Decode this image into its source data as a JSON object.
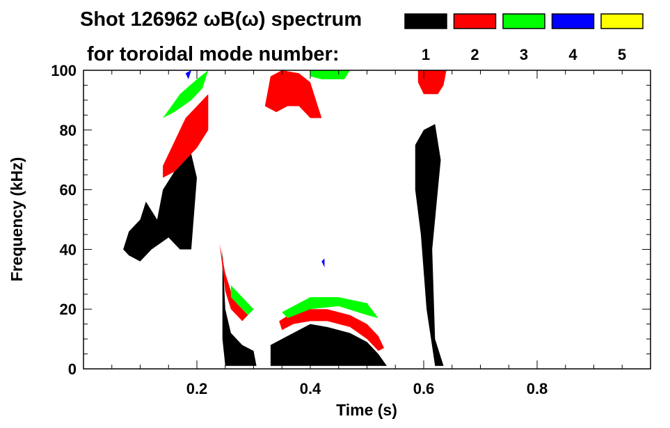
{
  "chart_data": {
    "type": "heatmap",
    "title_line1": "Shot 126962 ωB(ω) spectrum",
    "title_line2": "for toroidal mode number:",
    "xlabel": "Time (s)",
    "ylabel": "Frequency (kHz)",
    "xlim": [
      0.0,
      1.0
    ],
    "ylim": [
      0,
      100
    ],
    "xticks": [
      0.2,
      0.4,
      0.6,
      0.8
    ],
    "xtick_labels": [
      "0.2",
      "0.4",
      "0.6",
      "0.8"
    ],
    "yticks": [
      0,
      20,
      40,
      60,
      80,
      100
    ],
    "ytick_labels": [
      "0",
      "20",
      "40",
      "60",
      "80",
      "100"
    ],
    "legend": [
      {
        "label": "1",
        "color": "#000000"
      },
      {
        "label": "2",
        "color": "#ff0000"
      },
      {
        "label": "3",
        "color": "#00ff00"
      },
      {
        "label": "4",
        "color": "#0000ff"
      },
      {
        "label": "5",
        "color": "#ffff00"
      }
    ],
    "regions": [
      {
        "mode": 1,
        "points": [
          [
            0.07,
            40
          ],
          [
            0.08,
            46
          ],
          [
            0.1,
            50
          ],
          [
            0.11,
            56
          ],
          [
            0.13,
            50
          ],
          [
            0.14,
            60
          ],
          [
            0.16,
            66
          ],
          [
            0.19,
            72
          ],
          [
            0.2,
            64
          ],
          [
            0.19,
            40
          ],
          [
            0.17,
            40
          ],
          [
            0.15,
            44
          ],
          [
            0.12,
            40
          ],
          [
            0.1,
            36
          ],
          [
            0.08,
            38
          ]
        ]
      },
      {
        "mode": 1,
        "points": [
          [
            0.245,
            40
          ],
          [
            0.25,
            20
          ],
          [
            0.26,
            12
          ],
          [
            0.28,
            8
          ],
          [
            0.3,
            6
          ],
          [
            0.305,
            1
          ],
          [
            0.25,
            1
          ],
          [
            0.245,
            10
          ]
        ]
      },
      {
        "mode": 1,
        "points": [
          [
            0.33,
            8
          ],
          [
            0.36,
            11
          ],
          [
            0.4,
            15
          ],
          [
            0.43,
            14
          ],
          [
            0.47,
            12
          ],
          [
            0.5,
            9
          ],
          [
            0.52,
            5
          ],
          [
            0.535,
            1
          ],
          [
            0.33,
            1
          ]
        ]
      },
      {
        "mode": 1,
        "points": [
          [
            0.585,
            75
          ],
          [
            0.6,
            80
          ],
          [
            0.62,
            82
          ],
          [
            0.63,
            70
          ],
          [
            0.615,
            40
          ],
          [
            0.62,
            10
          ],
          [
            0.635,
            1
          ],
          [
            0.62,
            1
          ],
          [
            0.605,
            20
          ],
          [
            0.595,
            45
          ],
          [
            0.585,
            60
          ]
        ]
      },
      {
        "mode": 2,
        "points": [
          [
            0.14,
            68
          ],
          [
            0.16,
            76
          ],
          [
            0.18,
            84
          ],
          [
            0.2,
            88
          ],
          [
            0.22,
            92
          ],
          [
            0.22,
            80
          ],
          [
            0.2,
            74
          ],
          [
            0.18,
            70
          ],
          [
            0.16,
            66
          ],
          [
            0.14,
            64
          ]
        ]
      },
      {
        "mode": 2,
        "points": [
          [
            0.24,
            42
          ],
          [
            0.25,
            32
          ],
          [
            0.26,
            26
          ],
          [
            0.27,
            22
          ],
          [
            0.29,
            18
          ],
          [
            0.28,
            16
          ],
          [
            0.26,
            20
          ],
          [
            0.25,
            26
          ]
        ]
      },
      {
        "mode": 2,
        "points": [
          [
            0.345,
            16
          ],
          [
            0.37,
            19
          ],
          [
            0.4,
            20
          ],
          [
            0.43,
            20
          ],
          [
            0.47,
            18
          ],
          [
            0.5,
            15
          ],
          [
            0.52,
            11
          ],
          [
            0.53,
            7
          ],
          [
            0.52,
            6
          ],
          [
            0.5,
            10
          ],
          [
            0.47,
            14
          ],
          [
            0.43,
            16
          ],
          [
            0.4,
            16
          ],
          [
            0.37,
            15
          ],
          [
            0.35,
            13
          ]
        ]
      },
      {
        "mode": 2,
        "points": [
          [
            0.32,
            88
          ],
          [
            0.33,
            98
          ],
          [
            0.35,
            100
          ],
          [
            0.38,
            99
          ],
          [
            0.4,
            96
          ],
          [
            0.41,
            90
          ],
          [
            0.42,
            84
          ],
          [
            0.4,
            84
          ],
          [
            0.38,
            88
          ],
          [
            0.36,
            88
          ],
          [
            0.34,
            86
          ]
        ]
      },
      {
        "mode": 2,
        "points": [
          [
            0.59,
            100
          ],
          [
            0.64,
            100
          ],
          [
            0.635,
            95
          ],
          [
            0.625,
            92
          ],
          [
            0.6,
            92
          ],
          [
            0.59,
            96
          ]
        ]
      },
      {
        "mode": 3,
        "points": [
          [
            0.14,
            84
          ],
          [
            0.17,
            92
          ],
          [
            0.2,
            97
          ],
          [
            0.22,
            100
          ],
          [
            0.21,
            94
          ],
          [
            0.19,
            90
          ],
          [
            0.16,
            86
          ]
        ]
      },
      {
        "mode": 3,
        "points": [
          [
            0.26,
            28
          ],
          [
            0.28,
            24
          ],
          [
            0.3,
            20
          ],
          [
            0.29,
            18
          ],
          [
            0.27,
            22
          ],
          [
            0.26,
            24
          ]
        ]
      },
      {
        "mode": 3,
        "points": [
          [
            0.35,
            19
          ],
          [
            0.4,
            24
          ],
          [
            0.45,
            24
          ],
          [
            0.5,
            22
          ],
          [
            0.52,
            17
          ],
          [
            0.5,
            18
          ],
          [
            0.45,
            21
          ],
          [
            0.4,
            20
          ],
          [
            0.36,
            17
          ]
        ]
      },
      {
        "mode": 3,
        "points": [
          [
            0.4,
            100
          ],
          [
            0.47,
            100
          ],
          [
            0.46,
            97
          ],
          [
            0.42,
            97
          ],
          [
            0.4,
            98
          ]
        ]
      },
      {
        "mode": 4,
        "points": [
          [
            0.18,
            99
          ],
          [
            0.19,
            100
          ],
          [
            0.185,
            97
          ]
        ]
      },
      {
        "mode": 4,
        "points": [
          [
            0.42,
            36
          ],
          [
            0.425,
            37
          ],
          [
            0.425,
            34
          ]
        ]
      }
    ]
  }
}
